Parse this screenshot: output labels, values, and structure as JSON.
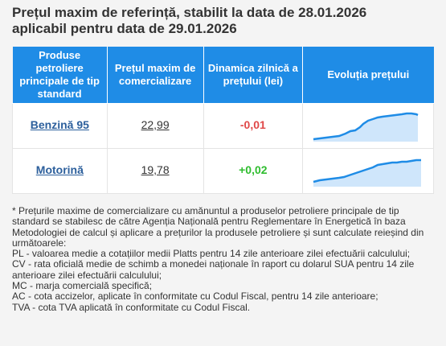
{
  "title_line1": "Prețul maxim de referință, stabilit la data de 28.01.2026",
  "title_line2": "aplicabil pentru data de 29.01.2026",
  "headers": [
    "Produse petroliere principale de tip standard",
    "Prețul maxim de comercializare",
    "Dinamica zilnică a prețului (lei)",
    "Evoluția prețului"
  ],
  "rows": [
    {
      "product": "Benzină 95",
      "price": "22,99",
      "change": "-0,01"
    },
    {
      "product": "Motorină",
      "price": "19,78",
      "change": "+0,02"
    }
  ],
  "colors": {
    "header_bg": "#1f8ce6",
    "negative": "#e04848",
    "positive": "#2fbd2f",
    "link": "#2c5f9c",
    "spark_line": "#1f8ce6"
  },
  "notes": [
    "* Prețurile maxime de comercializare cu amănuntul a produselor petroliere principale de tip standard se stabilesc de către Agenția Națională pentru Reglementare în Energetică în baza Metodologiei de calcul și aplicare a prețurilor la produsele petroliere și sunt calculate reieșind din următoarele:",
    "PL - valoarea medie a cotațiilor medii Platts pentru 14 zile anterioare zilei efectuării calculului;",
    "CV - rata oficială medie de schimb a monedei naționale în raport cu dolarul SUA pentru 14 zile anterioare zilei efectuării calculului;",
    "MC - marja comercială specifică;",
    "AC - cota accizelor, aplicate în conformitate cu Codul Fiscal, pentru 14 zile anterioare;",
    "TVA - cota TVA aplicată în conformitate cu Codul Fiscal."
  ]
}
